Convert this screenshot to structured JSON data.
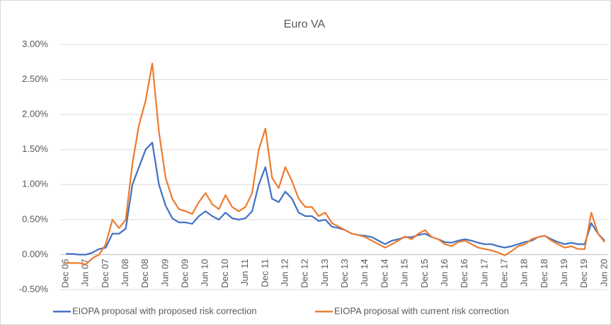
{
  "chart_data": {
    "type": "line",
    "title": "Euro VA",
    "categories": [
      "Dec 06",
      null,
      null,
      "Jun 07",
      null,
      null,
      "Dec 07",
      null,
      null,
      "Jun 08",
      null,
      null,
      "Dec 08",
      null,
      null,
      "Jun 09",
      null,
      null,
      "Dec 09",
      null,
      null,
      "Jun 10",
      null,
      null,
      "Dec 10",
      null,
      null,
      "Jun 11",
      null,
      null,
      "Dec 11",
      null,
      null,
      "Jun 12",
      null,
      null,
      "Dec 12",
      null,
      null,
      "Jun 13",
      null,
      null,
      "Dec 13",
      null,
      null,
      "Jun 14",
      null,
      null,
      "Dec 14",
      null,
      null,
      "Jun 15",
      null,
      null,
      "Dec 15",
      null,
      null,
      "Jun 16",
      null,
      null,
      "Dec 16",
      null,
      null,
      "Jun 17",
      null,
      null,
      "Dec 17",
      null,
      null,
      "Jun 18",
      null,
      null,
      "Dec 18",
      null,
      null,
      "Jun 19",
      null,
      null,
      "Dec 19",
      null,
      null,
      "Jun 20"
    ],
    "series": [
      {
        "name": "EIOPA proposal with proposed risk correction",
        "color": "#4472c4",
        "values": [
          0.01,
          0.01,
          0.0,
          0.0,
          0.03,
          0.08,
          0.1,
          0.3,
          0.3,
          0.37,
          1.0,
          1.25,
          1.5,
          1.6,
          1.0,
          0.7,
          0.52,
          0.46,
          0.46,
          0.44,
          0.55,
          0.62,
          0.55,
          0.5,
          0.6,
          0.52,
          0.5,
          0.52,
          0.62,
          1.0,
          1.25,
          0.8,
          0.75,
          0.9,
          0.8,
          0.6,
          0.55,
          0.55,
          0.48,
          0.5,
          0.4,
          0.38,
          0.35,
          0.3,
          0.28,
          0.27,
          0.25,
          0.2,
          0.15,
          0.2,
          0.22,
          0.25,
          0.25,
          0.28,
          0.3,
          0.25,
          0.22,
          0.18,
          0.17,
          0.2,
          0.22,
          0.2,
          0.17,
          0.15,
          0.15,
          0.12,
          0.1,
          0.12,
          0.15,
          0.18,
          0.2,
          0.25,
          0.27,
          0.22,
          0.18,
          0.15,
          0.17,
          0.15,
          0.15,
          0.45,
          0.3,
          0.2
        ]
      },
      {
        "name": "EIOPA proposal with current risk correction",
        "color": "#ed7d31",
        "values": [
          -0.12,
          -0.12,
          -0.12,
          -0.14,
          -0.05,
          0.0,
          0.15,
          0.5,
          0.38,
          0.5,
          1.3,
          1.85,
          2.2,
          2.73,
          1.75,
          1.1,
          0.8,
          0.65,
          0.62,
          0.58,
          0.75,
          0.88,
          0.72,
          0.65,
          0.85,
          0.68,
          0.62,
          0.68,
          0.88,
          1.5,
          1.8,
          1.1,
          0.95,
          1.25,
          1.05,
          0.8,
          0.68,
          0.68,
          0.55,
          0.6,
          0.45,
          0.4,
          0.35,
          0.3,
          0.28,
          0.25,
          0.2,
          0.15,
          0.1,
          0.15,
          0.2,
          0.26,
          0.22,
          0.3,
          0.35,
          0.25,
          0.22,
          0.15,
          0.12,
          0.18,
          0.2,
          0.15,
          0.1,
          0.08,
          0.06,
          0.03,
          -0.01,
          0.05,
          0.12,
          0.15,
          0.22,
          0.25,
          0.27,
          0.2,
          0.15,
          0.1,
          0.12,
          0.08,
          0.08,
          0.6,
          0.3,
          0.18
        ]
      }
    ],
    "ylim": [
      -0.5,
      3
    ],
    "yticks": [
      {
        "value": -0.5,
        "label": "-0.50%"
      },
      {
        "value": 0,
        "label": "0.00%"
      },
      {
        "value": 0.5,
        "label": "0.50%"
      },
      {
        "value": 1,
        "label": "1.00%"
      },
      {
        "value": 1.5,
        "label": "1.50%"
      },
      {
        "value": 2,
        "label": "2.00%"
      },
      {
        "value": 2.5,
        "label": "2.50%"
      },
      {
        "value": 3,
        "label": "3.00%"
      }
    ],
    "grid": true
  }
}
